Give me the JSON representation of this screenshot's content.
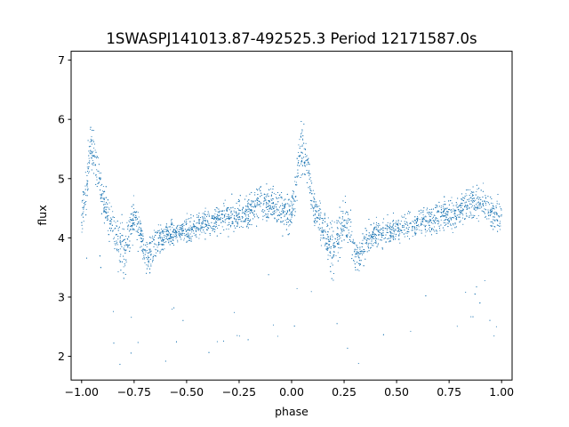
{
  "chart_data": {
    "type": "scatter",
    "title": "1SWASPJ141013.87-492525.3 Period 12171587.0s",
    "xlabel": "phase",
    "ylabel": "flux",
    "xlim": [
      -1.05,
      1.05
    ],
    "ylim": [
      1.6,
      7.15
    ],
    "xticks": [
      -1.0,
      -0.75,
      -0.5,
      -0.25,
      0.0,
      0.25,
      0.5,
      0.75,
      1.0
    ],
    "xtick_labels": [
      "−1.00",
      "−0.75",
      "−0.50",
      "−0.25",
      "0.00",
      "0.25",
      "0.50",
      "0.75",
      "1.00"
    ],
    "yticks": [
      2,
      3,
      4,
      5,
      6,
      7
    ],
    "ytick_labels": [
      "2",
      "3",
      "4",
      "5",
      "6",
      "7"
    ],
    "grid": false,
    "marker_color": "#1f77b4",
    "series": [
      {
        "profile_phase": [
          -1.0,
          -0.98,
          -0.96,
          -0.94,
          -0.92,
          -0.9,
          -0.88,
          -0.85,
          -0.82,
          -0.8,
          -0.78,
          -0.75,
          -0.72,
          -0.7,
          -0.68,
          -0.65,
          -0.62,
          -0.6,
          -0.55,
          -0.5,
          -0.45,
          -0.4,
          -0.35,
          -0.3,
          -0.25,
          -0.2,
          -0.15,
          -0.1,
          -0.05,
          -0.02,
          0.0
        ],
        "profile_mean_flux": [
          4.4,
          4.7,
          5.5,
          5.4,
          5.1,
          4.6,
          4.4,
          4.2,
          3.9,
          3.8,
          4.0,
          4.3,
          4.1,
          3.7,
          3.7,
          3.9,
          4.0,
          4.05,
          4.1,
          4.1,
          4.2,
          4.25,
          4.3,
          4.35,
          4.4,
          4.45,
          4.6,
          4.6,
          4.45,
          4.4,
          4.4
        ],
        "profile_spread": [
          0.35,
          0.45,
          0.5,
          0.45,
          0.4,
          0.35,
          0.35,
          0.4,
          0.45,
          0.5,
          0.45,
          0.4,
          0.35,
          0.35,
          0.35,
          0.3,
          0.3,
          0.25,
          0.25,
          0.25,
          0.25,
          0.25,
          0.28,
          0.3,
          0.3,
          0.35,
          0.35,
          0.35,
          0.35,
          0.35,
          0.35
        ],
        "flux_range": [
          1.85,
          6.55
        ],
        "phase_range": [
          -1.0,
          1.0
        ],
        "repeats_with_period_in_phase": 1.0
      }
    ]
  }
}
